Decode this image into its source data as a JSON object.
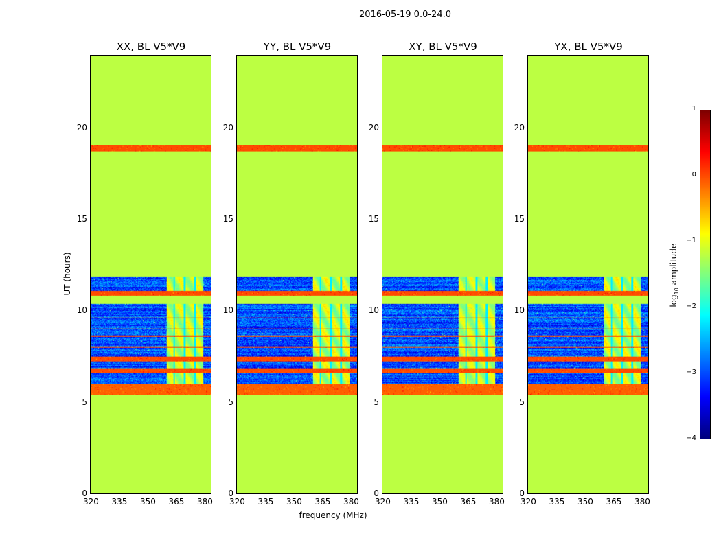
{
  "suptitle": "2016-05-19 0.0-24.0",
  "chart_data": {
    "type": "heatmap",
    "title": "2016-05-19 0.0-24.0",
    "panels": [
      {
        "title": "XX, BL V5*V9",
        "rfi_strength": 0.7
      },
      {
        "title": "YY, BL V5*V9",
        "rfi_strength": 0.85
      },
      {
        "title": "XY, BL V5*V9",
        "rfi_strength": 0.6
      },
      {
        "title": "YX, BL V5*V9",
        "rfi_strength": 0.85
      }
    ],
    "xlabel": "frequency (MHz)",
    "ylabel": "UT (hours)",
    "xlim": [
      320,
      384
    ],
    "ylim": [
      0,
      24
    ],
    "xticks": [
      "320",
      "335",
      "350",
      "365",
      "380"
    ],
    "xtick_values": [
      320,
      335,
      350,
      365,
      380
    ],
    "yticks": [
      "0",
      "5",
      "10",
      "15",
      "20"
    ],
    "ytick_values": [
      0,
      5,
      10,
      15,
      20
    ],
    "background_value": -1.2,
    "observation_ut": [
      5.4,
      11.9
    ],
    "noise_level": -3.0,
    "rfi_band_mhz": [
      360.5,
      380
    ],
    "flagged_bands": [
      {
        "ut": [
          18.75,
          19.1
        ],
        "value": 0
      },
      {
        "ut": [
          10.85,
          11.1
        ],
        "value": 0
      },
      {
        "ut": [
          10.4,
          10.85
        ],
        "value": -1.2
      },
      {
        "ut": [
          9.6,
          9.65
        ],
        "value": 0
      },
      {
        "ut": [
          9.0,
          9.05
        ],
        "value": 0
      },
      {
        "ut": [
          8.6,
          8.65
        ],
        "value": 0
      },
      {
        "ut": [
          8.0,
          8.08
        ],
        "value": 0
      },
      {
        "ut": [
          7.25,
          7.5
        ],
        "value": 0
      },
      {
        "ut": [
          6.6,
          6.85
        ],
        "value": 0
      },
      {
        "ut": [
          5.4,
          6.0
        ],
        "value": -0.1
      }
    ],
    "colorbar": {
      "label": "log10 amplitude",
      "range": [
        -4,
        1
      ],
      "ticks": [
        "1",
        "0",
        "−1",
        "−2",
        "−3",
        "−4"
      ],
      "tick_values": [
        1,
        0,
        -1,
        -2,
        -3,
        -4
      ],
      "colormap": "jet"
    }
  }
}
